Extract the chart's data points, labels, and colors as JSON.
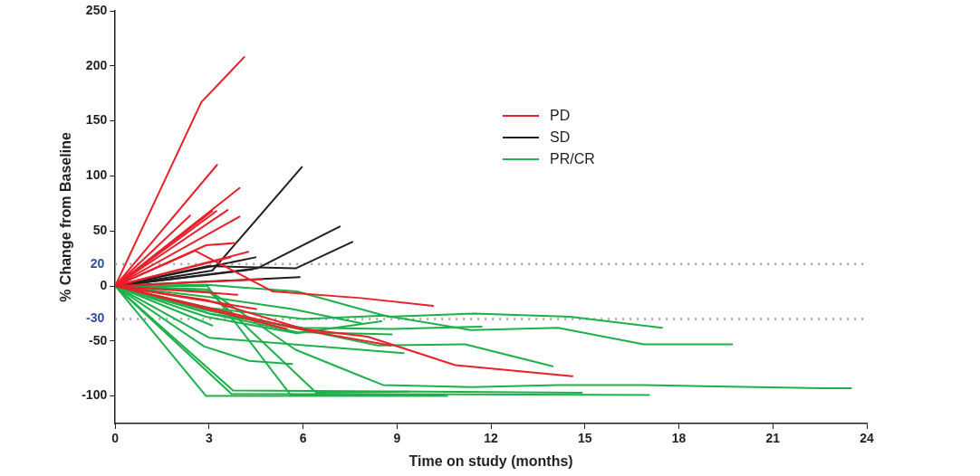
{
  "chart_data": {
    "type": "line",
    "xlabel": "Time on study (months)",
    "ylabel": "% Change from Baseline",
    "xlim": [
      0,
      24
    ],
    "xticks": [
      0,
      3,
      6,
      9,
      12,
      15,
      18,
      21,
      24
    ],
    "ylim": [
      -125,
      250
    ],
    "yticks": [
      -100,
      -50,
      0,
      50,
      100,
      150,
      200,
      250
    ],
    "grid": false,
    "legend": "top right",
    "marker": "none",
    "line_style": "solid",
    "ref_lines": [
      {
        "axis": "y",
        "value": 20,
        "label": "20",
        "color": "#a0a0a0",
        "line_style": "dotted"
      },
      {
        "axis": "y",
        "value": -30,
        "label": "-30",
        "color": "#a0a0a0",
        "line_style": "dotted"
      }
    ],
    "series": [
      {
        "name": "PD",
        "color": "#e8202a",
        "x": [
          0,
          2.75,
          4.12
        ],
        "values": [
          0,
          167,
          208
        ]
      },
      {
        "color": "#e8202a",
        "x": [
          0,
          3.25
        ],
        "values": [
          0,
          110
        ]
      },
      {
        "color": "#e8202a",
        "x": [
          0,
          3.97
        ],
        "values": [
          0,
          89
        ]
      },
      {
        "color": "#e8202a",
        "x": [
          0,
          2.39
        ],
        "values": [
          0,
          64
        ]
      },
      {
        "color": "#e8202a",
        "x": [
          0,
          3.1
        ],
        "values": [
          0,
          68
        ]
      },
      {
        "color": "#e8202a",
        "x": [
          0,
          3.23
        ],
        "values": [
          0,
          68
        ]
      },
      {
        "color": "#e8202a",
        "x": [
          0,
          3.59
        ],
        "values": [
          0,
          69
        ]
      },
      {
        "color": "#e8202a",
        "x": [
          0,
          3.97
        ],
        "values": [
          0,
          63
        ]
      },
      {
        "color": "#e8202a",
        "x": [
          0,
          2.9,
          3.84
        ],
        "values": [
          0,
          37,
          39
        ]
      },
      {
        "color": "#e8202a",
        "x": [
          0,
          4.25
        ],
        "values": [
          0,
          31
        ]
      },
      {
        "color": "#e8202a",
        "x": [
          0,
          2.55,
          5.03,
          7.85,
          10.15
        ],
        "values": [
          0,
          32,
          -5,
          -11,
          -18
        ]
      },
      {
        "color": "#e8202a",
        "x": [
          0,
          3.68
        ],
        "values": [
          0,
          26
        ]
      },
      {
        "color": "#e8202a",
        "x": [
          0,
          4.7
        ],
        "values": [
          0,
          6
        ]
      },
      {
        "color": "#e8202a",
        "x": [
          0,
          3.9
        ],
        "values": [
          0,
          -8
        ]
      },
      {
        "color": "#e8202a",
        "x": [
          0,
          4.5
        ],
        "values": [
          0,
          -21
        ]
      },
      {
        "color": "#e8202a",
        "x": [
          0,
          5.48
        ],
        "values": [
          0,
          -39
        ]
      },
      {
        "color": "#e8202a",
        "x": [
          0,
          2.94,
          6,
          8.06,
          10.86,
          14.6
        ],
        "values": [
          0,
          -13,
          -39,
          -46,
          -72,
          -82
        ]
      },
      {
        "color": "#e8202a",
        "x": [
          0,
          6,
          8.8
        ],
        "values": [
          0,
          -40,
          -54
        ]
      },
      {
        "name": "SD",
        "color": "#231f20",
        "x": [
          0,
          3.1,
          5.96
        ],
        "values": [
          0,
          14,
          108
        ]
      },
      {
        "color": "#231f20",
        "x": [
          0,
          4.53,
          7.17
        ],
        "values": [
          0,
          16,
          54
        ]
      },
      {
        "color": "#231f20",
        "x": [
          0,
          2.94,
          5.76,
          7.57
        ],
        "values": [
          0,
          18,
          16,
          40
        ]
      },
      {
        "color": "#231f20",
        "x": [
          0,
          4.48
        ],
        "values": [
          0,
          26
        ]
      },
      {
        "color": "#231f20",
        "x": [
          0,
          4.38
        ],
        "values": [
          0,
          15
        ]
      },
      {
        "color": "#231f20",
        "x": [
          0,
          5.89
        ],
        "values": [
          0,
          8
        ]
      },
      {
        "name": "PR/CR",
        "color": "#1db04b",
        "x": [
          0,
          2.94,
          5.8,
          8.72,
          11.46,
          14.52,
          17.46
        ],
        "values": [
          0,
          1,
          -5,
          -28,
          -25,
          -28,
          -38
        ]
      },
      {
        "color": "#1db04b",
        "x": [
          0,
          3,
          6,
          8.6,
          11.35,
          14.14,
          16.88,
          19.7
        ],
        "values": [
          0,
          -20,
          -30,
          -27,
          -40,
          -38,
          -53,
          -53
        ]
      },
      {
        "color": "#1db04b",
        "x": [
          0,
          3,
          6,
          8.83,
          11.7
        ],
        "values": [
          0,
          -25,
          -38,
          -39,
          -37
        ]
      },
      {
        "color": "#1db04b",
        "x": [
          0,
          2.9,
          5.8,
          8.5
        ],
        "values": [
          0,
          -28,
          -43,
          -32
        ]
      },
      {
        "color": "#1db04b",
        "x": [
          0,
          3,
          7.85,
          9.21
        ],
        "values": [
          0,
          -47,
          -58,
          -61
        ]
      },
      {
        "color": "#1db04b",
        "x": [
          0,
          2.94,
          5.76,
          7.85,
          8.55,
          11.4,
          14.14,
          16.88,
          22.58,
          23.5
        ],
        "values": [
          0,
          -3,
          -58,
          -82,
          -90,
          -92,
          -90,
          -90,
          -93,
          -93
        ]
      },
      {
        "color": "#1db04b",
        "x": [
          0,
          2.9,
          5.7,
          8.39,
          11.18,
          13.97
        ],
        "values": [
          0,
          -22,
          -38,
          -54,
          -53,
          -73
        ]
      },
      {
        "color": "#1db04b",
        "x": [
          0,
          2.84,
          4.27,
          5.65
        ],
        "values": [
          0,
          -55,
          -68,
          -71
        ]
      },
      {
        "color": "#1db04b",
        "x": [
          0,
          3.1
        ],
        "values": [
          0,
          -36
        ]
      },
      {
        "color": "#1db04b",
        "x": [
          0,
          2.9,
          10.6
        ],
        "values": [
          0,
          -100,
          -100
        ]
      },
      {
        "color": "#1db04b",
        "x": [
          0,
          3.76,
          14.9
        ],
        "values": [
          0,
          -95,
          -97
        ]
      },
      {
        "color": "#1db04b",
        "x": [
          0,
          3.71,
          17.05
        ],
        "values": [
          0,
          -98,
          -99
        ]
      },
      {
        "color": "#1db04b",
        "x": [
          0,
          2.94,
          5.6,
          10.5
        ],
        "values": [
          0,
          0,
          -99,
          -99
        ]
      },
      {
        "color": "#1db04b",
        "x": [
          0,
          3,
          6.42,
          9.4
        ],
        "values": [
          0,
          -5,
          -97,
          -96
        ]
      },
      {
        "color": "#1db04b",
        "x": [
          0,
          3,
          5.8,
          8.83
        ],
        "values": [
          0,
          -25,
          -42,
          -44
        ]
      },
      {
        "color": "#1db04b",
        "x": [
          0,
          3,
          5.65,
          7.85
        ],
        "values": [
          0,
          -10,
          -21,
          -34
        ]
      }
    ]
  }
}
